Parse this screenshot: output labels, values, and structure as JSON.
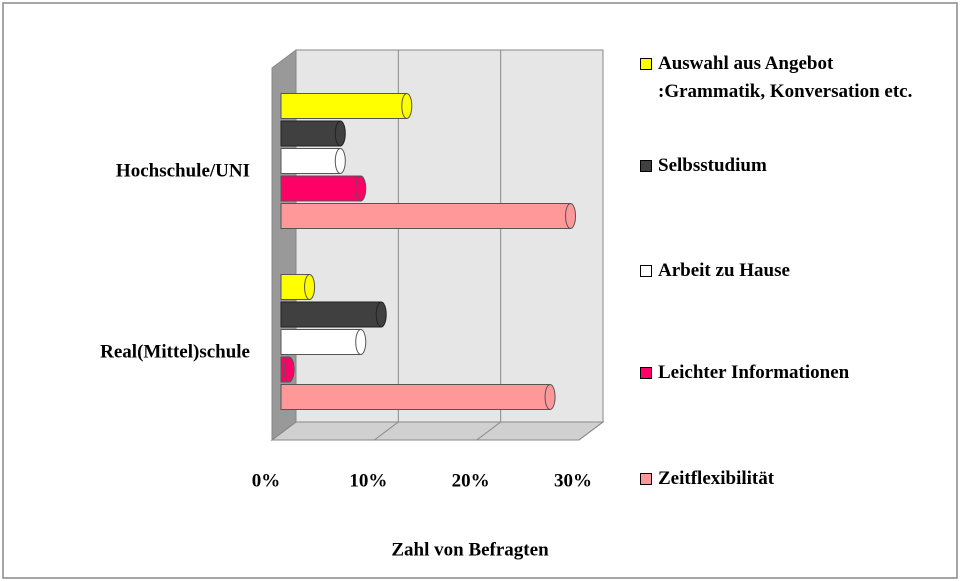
{
  "chart_data": {
    "type": "bar3d",
    "categories": [
      "Hochschule/UNI",
      "Real(Mittel)schule"
    ],
    "series": [
      {
        "name": "Auswahl aus Angebot :Grammatik, Konversation etc.",
        "color": "#ffff00",
        "values": [
          12,
          2.5
        ]
      },
      {
        "name": "Selbsstudium",
        "color": "#404040",
        "values": [
          5.5,
          9.5
        ]
      },
      {
        "name": "Arbeit zu Hause",
        "color": "#ffffff",
        "values": [
          5.5,
          7.5
        ]
      },
      {
        "name": "Leichter Informationen",
        "color": "#ff0066",
        "values": [
          7.5,
          0.5
        ]
      },
      {
        "name": "Zeitflexibilität",
        "color": "#ff9999",
        "values": [
          28,
          26
        ]
      }
    ],
    "x_label": "Zahl von Befragten",
    "xlim": [
      0,
      30
    ],
    "xticks": [
      {
        "value": 0,
        "label": "0%"
      },
      {
        "value": 10,
        "label": "10%"
      },
      {
        "value": 20,
        "label": "20%"
      },
      {
        "value": 30,
        "label": "30%"
      }
    ],
    "grid": true
  }
}
